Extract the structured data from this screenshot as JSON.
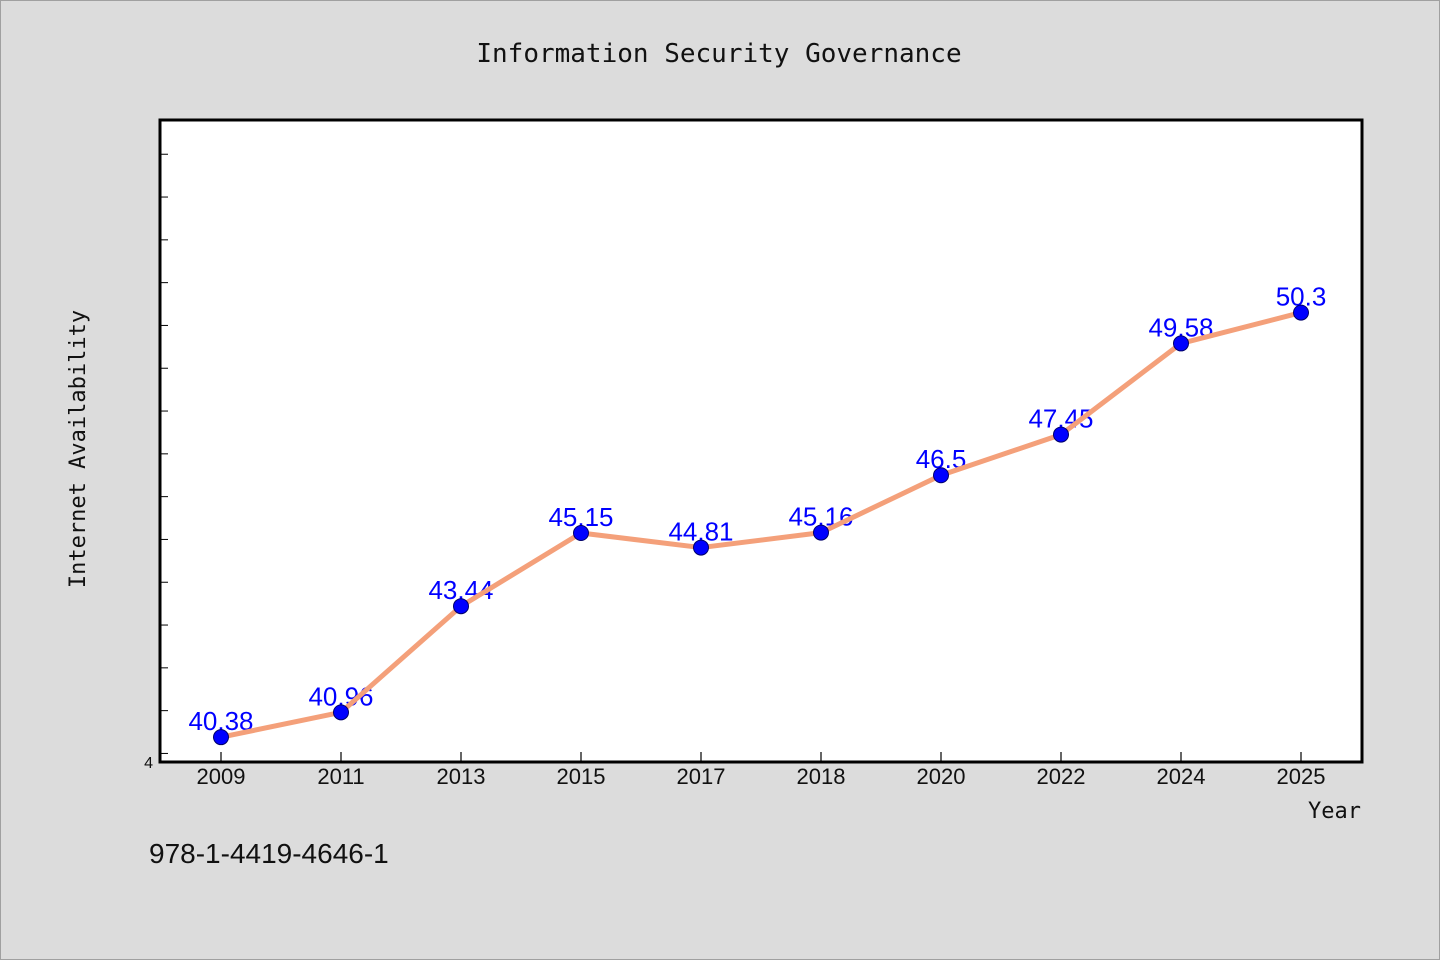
{
  "chart_data": {
    "type": "line",
    "title": "Information Security Governance",
    "xlabel": "Year",
    "ylabel": "Internet Availability",
    "categories": [
      "2009",
      "2011",
      "2013",
      "2015",
      "2017",
      "2018",
      "2020",
      "2022",
      "2024",
      "2025"
    ],
    "series": [
      {
        "values": [
          40.38,
          40.96,
          43.44,
          45.15,
          44.81,
          45.16,
          46.5,
          47.45,
          49.58,
          50.3
        ]
      }
    ],
    "data_labels": [
      "40.38",
      "40.96",
      "43.44",
      "45.15",
      "44.81",
      "45.16",
      "46.5",
      "47.45",
      "49.58",
      "50.3"
    ],
    "y_tick_labels": [
      "4"
    ],
    "ylim": [
      39.8,
      54.8
    ],
    "y_minor_tick_step": 1,
    "line_color": "#f4a07a",
    "marker_color": "#0000ff",
    "label_color": "#0000ff",
    "grid": false,
    "legend": "none"
  },
  "footer": {
    "isbn": "978-1-4419-4646-1"
  }
}
